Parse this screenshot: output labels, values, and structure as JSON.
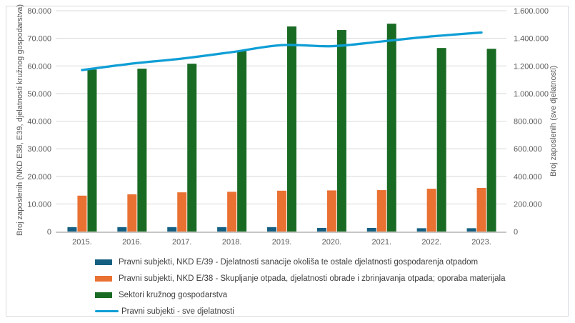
{
  "frame": {
    "background": "#ffffff",
    "border_color": "#d9d9d9"
  },
  "chart_data": {
    "type": "bar",
    "title": "",
    "categories": [
      "2015.",
      "2016.",
      "2017.",
      "2018.",
      "2019.",
      "2020.",
      "2021.",
      "2022.",
      "2023."
    ],
    "series": [
      {
        "name": "Pravni subjekti, NKD E/39 - Djelatnosti sanacije okoliša te ostale djelatnosti gospodarenja otpadom",
        "type": "bar",
        "axis": "left",
        "color": "#156082",
        "values": [
          1600,
          1600,
          1600,
          1600,
          1600,
          1300,
          1300,
          1200,
          1200
        ]
      },
      {
        "name": "Pravni subjekti, NKD E/38 - Skupljanje otpada, djelatnosti obrade i zbrinjavanja otpada; oporaba materijala",
        "type": "bar",
        "axis": "left",
        "color": "#e97132",
        "values": [
          13000,
          13500,
          14200,
          14400,
          14800,
          14900,
          15000,
          15500,
          15800
        ]
      },
      {
        "name": "Sektori kružnog gospodarstva",
        "type": "bar",
        "axis": "left",
        "color": "#196b24",
        "values": [
          58700,
          59000,
          60800,
          65400,
          74300,
          73000,
          75300,
          66500,
          66200
        ]
      },
      {
        "name": "Pravni subjekti - sve djelatnosti",
        "type": "line",
        "axis": "right",
        "color": "#0f9ed5",
        "values": [
          1170000,
          1217000,
          1253000,
          1300000,
          1351000,
          1343000,
          1377000,
          1414000,
          1442000
        ]
      }
    ],
    "left_axis": {
      "title": "Broj zaposlenih (NKD E38, E39, djelatnosti kružnog gospodarstva)",
      "min": 0,
      "max": 80000,
      "step": 10000
    },
    "right_axis": {
      "title": "Broj zaposlenih (sve djelatnosti)",
      "min": 0,
      "max": 1600000,
      "step": 200000
    },
    "grid": true,
    "legend_position": "bottom-left",
    "number_format": "dot-thousands"
  },
  "style": {
    "grid_color": "#d9d9d9",
    "axis_line_color": "#c6c6c6",
    "tick_color": "#595959",
    "legend_text_color": "#404040"
  }
}
